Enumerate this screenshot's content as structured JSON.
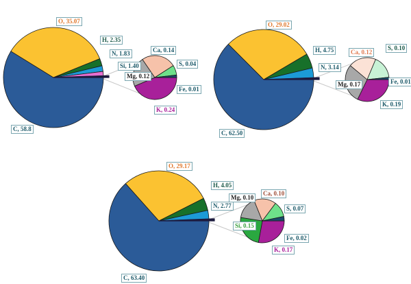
{
  "chart_data": [
    {
      "type": "pie-of-pie",
      "main": [
        {
          "label": "C",
          "value": 58.8,
          "text": "C, 58.8",
          "color": "#2b5b98",
          "label_color": "#1d5a6a"
        },
        {
          "label": "O",
          "value": 35.07,
          "text": "O, 35.07",
          "color": "#fbc231",
          "label_color": "#e07a30"
        },
        {
          "label": "H",
          "value": 2.35,
          "text": "H, 2.35",
          "color": "#17702a",
          "label_color": "#1d5a4a"
        },
        {
          "label": "N",
          "value": 1.83,
          "text": "N, 1.83",
          "color": "#1c9ad6",
          "label_color": "#1d5a6a"
        },
        {
          "label": "Si",
          "value": 1.4,
          "text": "Si, 1.40",
          "color": "#e66fd0",
          "label_color": "#1d5a6a"
        }
      ],
      "secondary": [
        {
          "label": "K",
          "value": 0.24,
          "text": "K, 0.24",
          "color": "#a8209a",
          "label_color": "#a8209a"
        },
        {
          "label": "Mg",
          "value": 0.12,
          "text": "Mg, 0.12",
          "color": "#a8a8a8",
          "label_color": "#222222"
        },
        {
          "label": "Ca",
          "value": 0.14,
          "text": "Ca, 0.14",
          "color": "#f6c2aa",
          "label_color": "#1d5a6a"
        },
        {
          "label": "S",
          "value": 0.04,
          "text": "S, 0.04",
          "color": "#6ee08a",
          "label_color": "#1d5a6a"
        },
        {
          "label": "Fe",
          "value": 0.01,
          "text": "Fe, 0.01",
          "color": "#1a4a6a",
          "label_color": "#1d5a6a"
        }
      ]
    },
    {
      "type": "pie-of-pie",
      "main": [
        {
          "label": "C",
          "value": 62.5,
          "text": "C, 62.50",
          "color": "#2b5b98",
          "label_color": "#1d5a6a"
        },
        {
          "label": "O",
          "value": 29.02,
          "text": "O, 29.02",
          "color": "#fbc231",
          "label_color": "#e07a30"
        },
        {
          "label": "H",
          "value": 4.75,
          "text": "H, 4.75",
          "color": "#17702a",
          "label_color": "#1d5a6a"
        },
        {
          "label": "N",
          "value": 3.14,
          "text": "N, 3.14",
          "color": "#1c9ad6",
          "label_color": "#1d5a6a"
        }
      ],
      "secondary": [
        {
          "label": "K",
          "value": 0.19,
          "text": "K, 0.19",
          "color": "#a8209a",
          "label_color": "#1d5a6a"
        },
        {
          "label": "Mg",
          "value": 0.17,
          "text": "Mg, 0.17",
          "color": "#a8a8a8",
          "label_color": "#222222"
        },
        {
          "label": "Ca",
          "value": 0.12,
          "text": "Ca, 0.12",
          "color": "#fbe2d6",
          "label_color": "#e07a50"
        },
        {
          "label": "S",
          "value": 0.1,
          "text": "S, 0.10",
          "color": "#c8f2d6",
          "label_color": "#1d5a4a"
        },
        {
          "label": "Fe",
          "value": 0.01,
          "text": "Fe, 0.01",
          "color": "#1a4a6a",
          "label_color": "#1d5a6a"
        }
      ]
    },
    {
      "type": "pie-of-pie",
      "main": [
        {
          "label": "C",
          "value": 63.4,
          "text": "C, 63.40",
          "color": "#2b5b98",
          "label_color": "#1d5a6a"
        },
        {
          "label": "O",
          "value": 29.17,
          "text": "O, 29.17",
          "color": "#fbc231",
          "label_color": "#e07a30"
        },
        {
          "label": "H",
          "value": 4.05,
          "text": "H, 4.05",
          "color": "#17702a",
          "label_color": "#1d5a4a"
        },
        {
          "label": "N",
          "value": 2.77,
          "text": "N, 2.77",
          "color": "#1c9ad6",
          "label_color": "#1d5a6a"
        }
      ],
      "secondary": [
        {
          "label": "K",
          "value": 0.17,
          "text": "K, 0.17",
          "color": "#a8209a",
          "label_color": "#a8209a"
        },
        {
          "label": "Si",
          "value": 0.15,
          "text": "Si, 0.15",
          "color": "#2aa840",
          "label_color": "#3aa040"
        },
        {
          "label": "Mg",
          "value": 0.1,
          "text": "Mg, 0.10",
          "color": "#a8a8a8",
          "label_color": "#222222"
        },
        {
          "label": "Ca",
          "value": 0.1,
          "text": "Ca, 0.10",
          "color": "#f6c2aa",
          "label_color": "#a0503a"
        },
        {
          "label": "S",
          "value": 0.07,
          "text": "S, 0.07",
          "color": "#6ee08a",
          "label_color": "#1d5a6a"
        },
        {
          "label": "Fe",
          "value": 0.02,
          "text": "Fe, 0.02",
          "color": "#1a4a6a",
          "label_color": "#1d5a6a"
        }
      ]
    }
  ]
}
